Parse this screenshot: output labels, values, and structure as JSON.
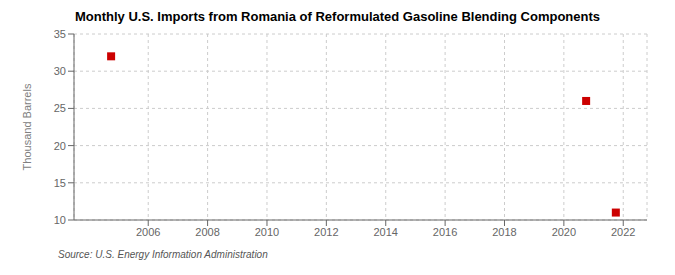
{
  "chart_data": {
    "type": "scatter",
    "title": "Monthly U.S. Imports from Romania of Reformulated Gasoline Blending Components",
    "y_label": "Thousand Barrels",
    "annotations": [
      "Source: U.S. Energy Information Administration"
    ],
    "x": [
      2004.75,
      2020.75,
      2021.75
    ],
    "values": [
      32,
      26,
      11
    ],
    "color": "#cc0000",
    "marker": "square",
    "xlim": [
      2003.5,
      2022.8
    ],
    "ylim": [
      10,
      35
    ],
    "xticks": [
      2006,
      2008,
      2010,
      2012,
      2014,
      2016,
      2018,
      2020,
      2022
    ],
    "yticks": [
      10,
      15,
      20,
      25,
      30,
      35
    ],
    "grid": true
  }
}
